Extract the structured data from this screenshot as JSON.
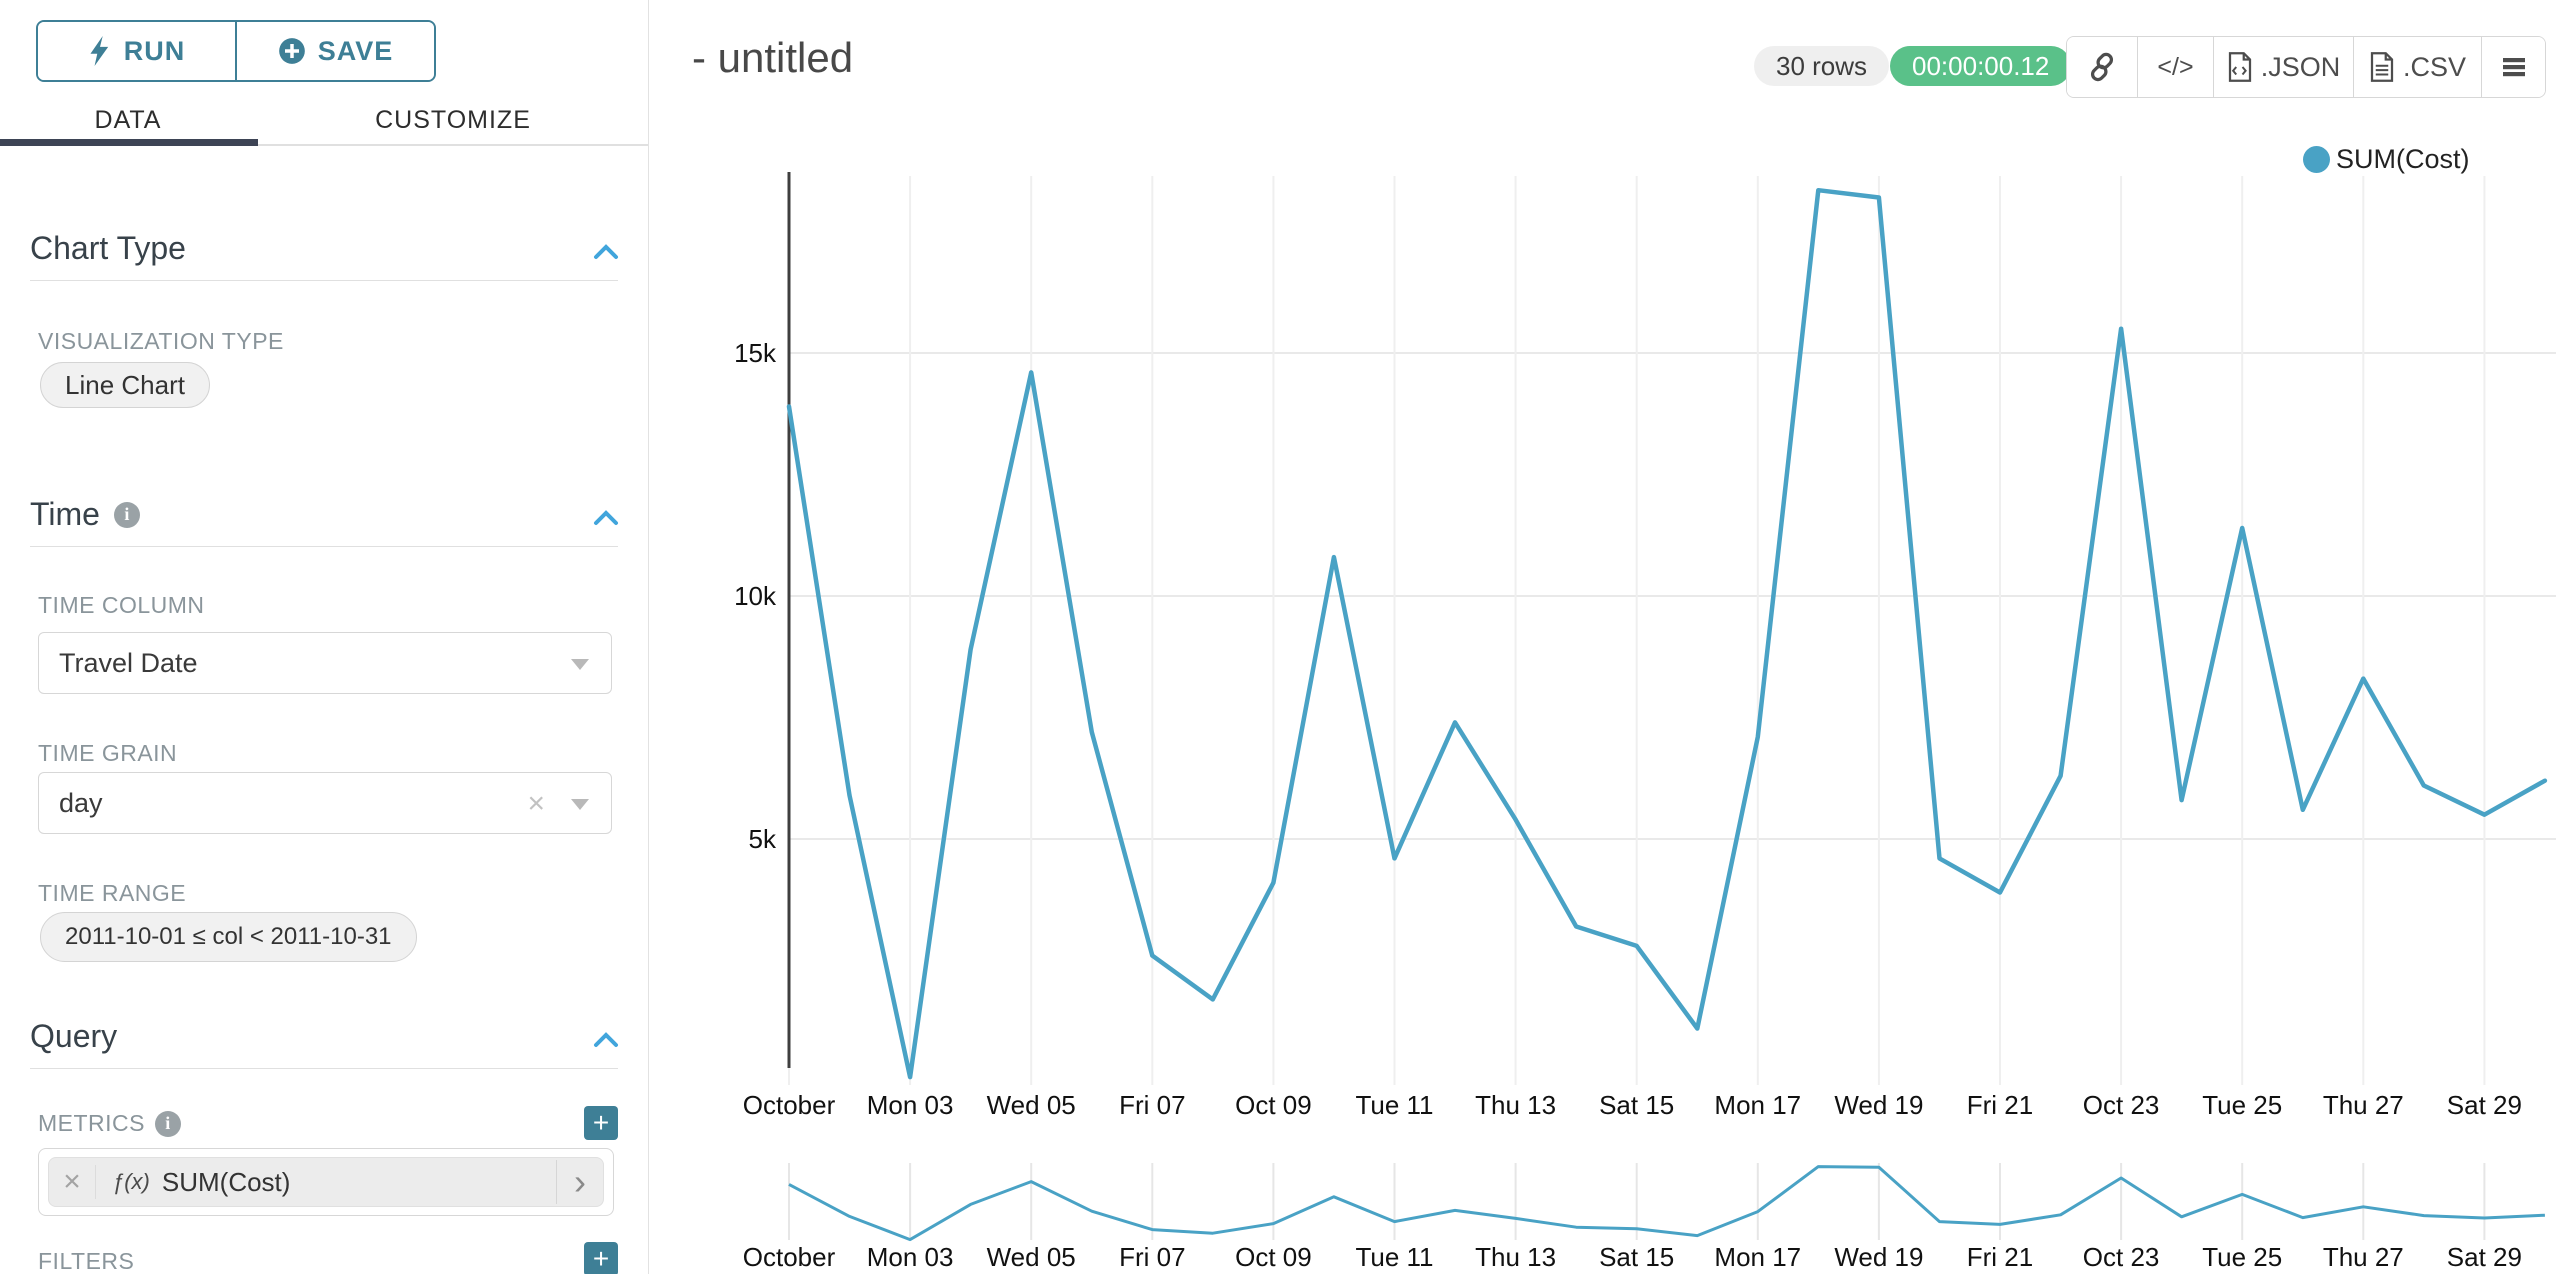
{
  "sidebar": {
    "run_button": "RUN",
    "save_button": "SAVE",
    "tabs": {
      "data": "DATA",
      "customize": "CUSTOMIZE"
    },
    "chart_type": {
      "title": "Chart Type",
      "viz_type_label": "VISUALIZATION TYPE",
      "viz_type_value": "Line Chart"
    },
    "time": {
      "title": "Time",
      "time_column_label": "TIME COLUMN",
      "time_column_value": "Travel Date",
      "time_grain_label": "TIME GRAIN",
      "time_grain_value": "day",
      "time_range_label": "TIME RANGE",
      "time_range_value": "2011-10-01 ≤ col < 2011-10-31"
    },
    "query": {
      "title": "Query",
      "metrics_label": "METRICS",
      "metric_fx": "ƒ(x)",
      "metric_value": "SUM(Cost)",
      "filters_label": "FILTERS"
    }
  },
  "header": {
    "title": "- untitled",
    "row_count": "30 rows",
    "query_time": "00:00:00.12",
    "code_icon_label": "</>",
    "json_button": ".JSON",
    "csv_button": ".CSV"
  },
  "colors": {
    "accent_teal": "#3e7f96",
    "line_teal": "#49a2c5",
    "success_green": "#5ac189",
    "chevron_blue": "#41a5dc",
    "grid": "#e9e9e9",
    "axis": "#3f3f3f"
  },
  "chart_data": {
    "type": "line",
    "title": "- untitled",
    "legend_position": "top-right",
    "grid": true,
    "has_mini_range_chart": true,
    "x_unit": "day of October 2011",
    "x_days": [
      1,
      2,
      3,
      4,
      5,
      6,
      7,
      8,
      9,
      10,
      11,
      12,
      13,
      14,
      15,
      16,
      17,
      18,
      19,
      20,
      21,
      22,
      23,
      24,
      25,
      26,
      27,
      28,
      29,
      30
    ],
    "series": [
      {
        "name": "SUM(Cost)",
        "color": "#49a2c5",
        "values": [
          13900,
          5900,
          100,
          8900,
          14600,
          7200,
          2600,
          1700,
          4100,
          10800,
          4600,
          7400,
          5400,
          3200,
          2800,
          1100,
          7100,
          18350,
          18200,
          4600,
          3900,
          6300,
          15500,
          5800,
          11400,
          5600,
          8300,
          6100,
          5500,
          6200
        ]
      }
    ],
    "x_tick_days": [
      1,
      3,
      5,
      7,
      9,
      11,
      13,
      15,
      17,
      19,
      21,
      23,
      25,
      27,
      29
    ],
    "x_tick_labels": [
      "October",
      "Mon 03",
      "Wed 05",
      "Fri 07",
      "Oct 09",
      "Tue 11",
      "Thu 13",
      "Sat 15",
      "Mon 17",
      "Wed 19",
      "Fri 21",
      "Oct 23",
      "Tue 25",
      "Thu 27",
      "Sat 29"
    ],
    "y_ticks": [
      {
        "value": 5000,
        "label": "5k"
      },
      {
        "value": 10000,
        "label": "10k"
      },
      {
        "value": 15000,
        "label": "15k"
      }
    ],
    "ylim": [
      0,
      18500
    ]
  }
}
